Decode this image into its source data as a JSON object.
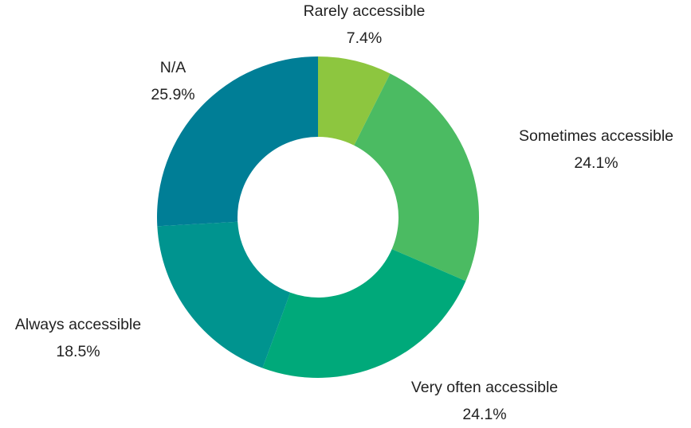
{
  "chart_data": {
    "type": "pie",
    "donut": true,
    "slices": [
      {
        "label": "Rarely accessible",
        "value": 7.4,
        "display": "7.4%",
        "color": "#8dc63f"
      },
      {
        "label": "Sometimes accessible",
        "value": 24.1,
        "display": "24.1%",
        "color": "#4bbb62"
      },
      {
        "label": "Very often accessible",
        "value": 24.1,
        "display": "24.1%",
        "color": "#00a97a"
      },
      {
        "label": "Always accessible",
        "value": 18.5,
        "display": "18.5%",
        "color": "#00948f"
      },
      {
        "label": "N/A",
        "value": 25.9,
        "display": "25.9%",
        "color": "#007e96"
      }
    ],
    "legend": "none"
  }
}
